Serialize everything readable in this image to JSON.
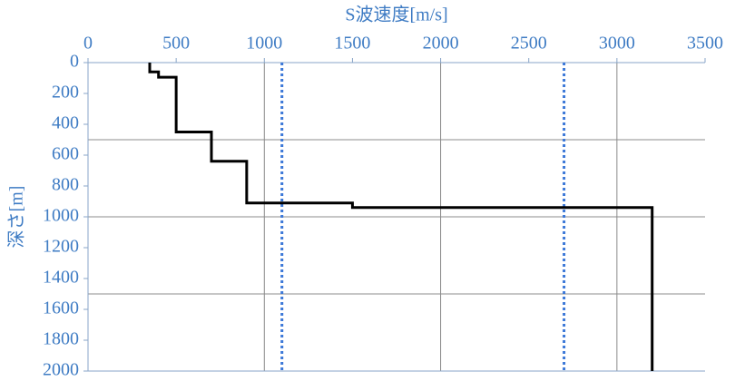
{
  "chart_data": {
    "type": "line",
    "xlabel": "S波速度[m/s]",
    "ylabel": "深さ[m]",
    "xlim": [
      0,
      3500
    ],
    "xticks": [
      0,
      500,
      1000,
      1500,
      2000,
      2500,
      3000,
      3500
    ],
    "ylim": [
      0,
      2000
    ],
    "yticks": [
      0,
      200,
      400,
      600,
      800,
      1000,
      1200,
      1400,
      1600,
      1800,
      2000
    ],
    "y_inverted": true,
    "x_axis_position": "top",
    "xgrid": [
      1000,
      2000,
      3000
    ],
    "ygrid": [
      500,
      1000,
      1500
    ],
    "series": [
      {
        "color": "#000000",
        "x": [
          350,
          350,
          400,
          400,
          500,
          500,
          700,
          700,
          900,
          900,
          1500,
          1500,
          3200,
          3200
        ],
        "values": [
          0,
          60,
          60,
          95,
          95,
          450,
          450,
          640,
          640,
          910,
          910,
          940,
          940,
          2000
        ]
      }
    ],
    "reference_lines": [
      {
        "value": 1100,
        "color": "#3c78d8"
      },
      {
        "value": 2700,
        "color": "#3c78d8"
      }
    ]
  }
}
